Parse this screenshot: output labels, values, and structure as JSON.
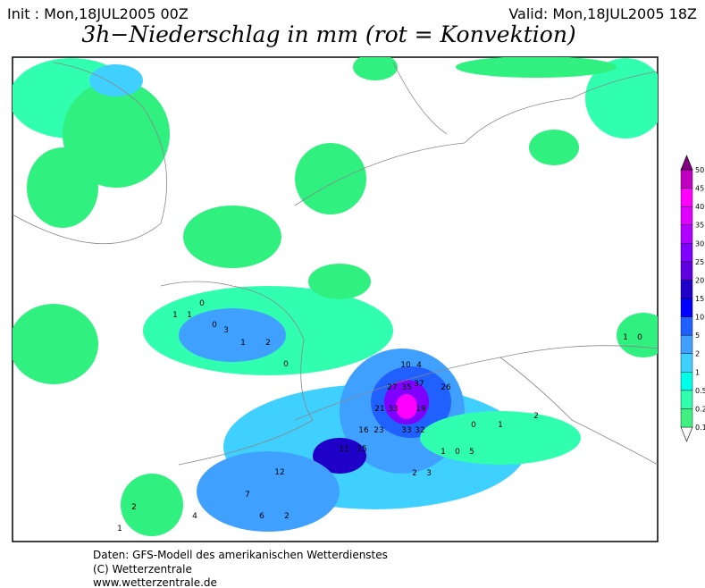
{
  "header": {
    "init": "Init : Mon,18JUL2005 00Z",
    "valid": "Valid: Mon,18JUL2005 18Z",
    "title": "3h−Niederschlag in mm (rot = Konvektion)"
  },
  "colorbar": {
    "levels": [
      0.1,
      0.2,
      0.5,
      1,
      2,
      5,
      10,
      15,
      20,
      25,
      30,
      35,
      40,
      45,
      50
    ],
    "colors": [
      "#ffffff",
      "#40f080",
      "#30ffb0",
      "#00ffe8",
      "#40d0ff",
      "#40a0ff",
      "#2060ff",
      "#0000ff",
      "#2000c8",
      "#6000e0",
      "#8000ff",
      "#b000ff",
      "#e000ff",
      "#ff00ff",
      "#c000c0",
      "#800080"
    ]
  },
  "map_labels": [
    "35",
    "37",
    "33",
    "27",
    "26",
    "21",
    "19",
    "33",
    "32",
    "23",
    "16",
    "12",
    "15",
    "11",
    "10",
    "4",
    "3",
    "2",
    "1",
    "0",
    "5",
    "7",
    "6",
    "2",
    "3",
    "1",
    "0",
    "1",
    "1",
    "0",
    "2",
    "4",
    "2",
    "1",
    "0",
    "1",
    "1",
    "0",
    "0",
    "2"
  ],
  "footer": {
    "line1": "Daten: GFS-Modell des amerikanischen Wetterdienstes",
    "line2": "(C) Wetterzentrale",
    "line3": "www.wetterzentrale.de"
  }
}
